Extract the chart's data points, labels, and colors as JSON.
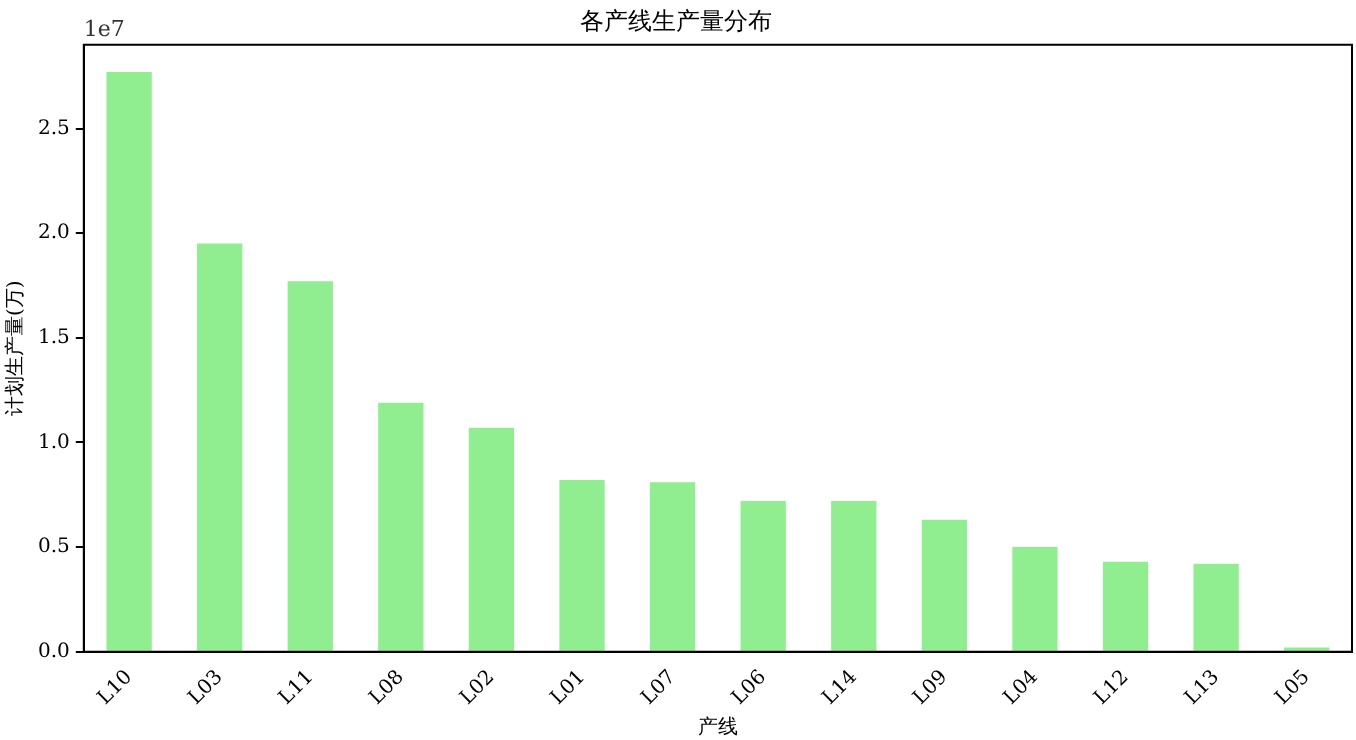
{
  "chart_data": {
    "type": "bar",
    "title": "各产线生产量分布",
    "xlabel": "产线",
    "ylabel": "计划生产量(万)",
    "categories": [
      "L10",
      "L03",
      "L11",
      "L08",
      "L02",
      "L01",
      "L07",
      "L06",
      "L14",
      "L09",
      "L04",
      "L12",
      "L13",
      "L05"
    ],
    "values": [
      2.77,
      1.95,
      1.77,
      1.19,
      1.07,
      0.82,
      0.81,
      0.72,
      0.72,
      0.63,
      0.5,
      0.43,
      0.42,
      0.02
    ],
    "color": "#90ee90",
    "ylim": [
      0,
      2.9
    ],
    "yticks": [
      {
        "value": 0,
        "label": "0.0"
      },
      0.5,
      {
        "value": 1,
        "label": "1.0"
      },
      1.5,
      {
        "value": 2,
        "label": "2.0"
      },
      2.5
    ],
    "annotations": [
      "1e7"
    ],
    "grid": false,
    "legend": false
  }
}
